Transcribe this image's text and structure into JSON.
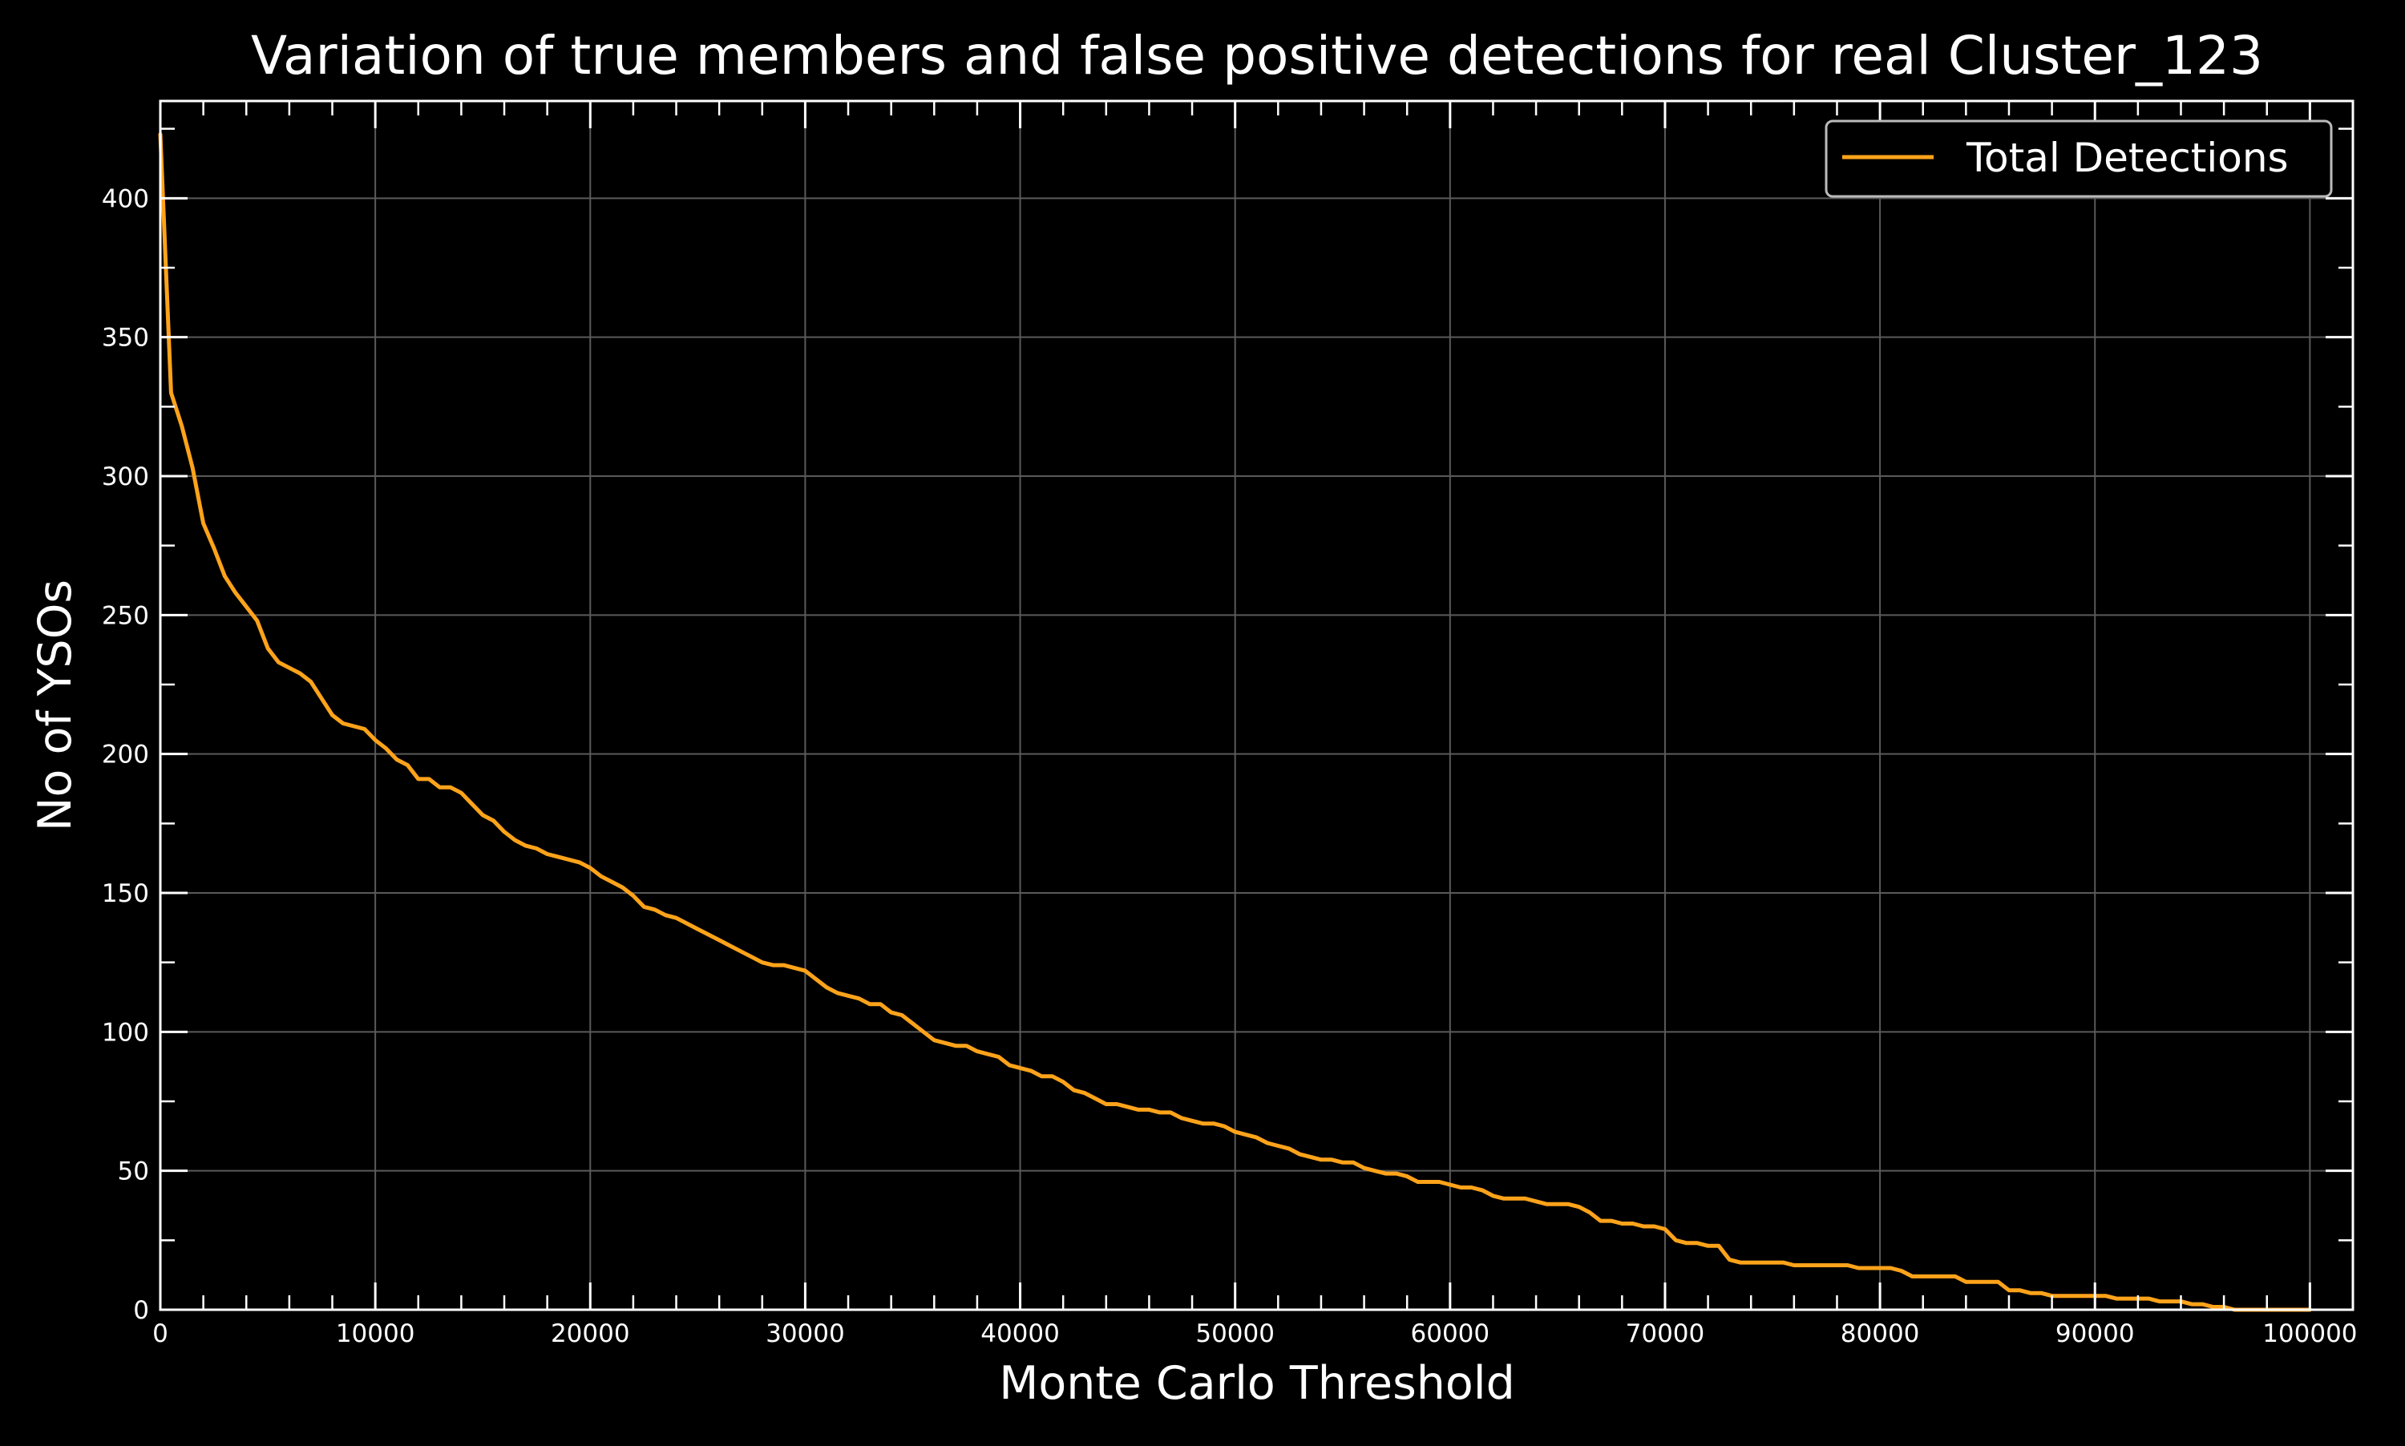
{
  "colors": {
    "background": "#000000",
    "foreground": "#ffffff",
    "grid": "#5a5a5a",
    "series_line": "#ffa31a",
    "legend_border": "#bbbbbb"
  },
  "chart_data": {
    "type": "line",
    "title": "Variation of true members and false positive detections for real Cluster_123",
    "xlabel": "Monte Carlo Threshold",
    "ylabel": "No of YSOs",
    "xlim": [
      0,
      102000
    ],
    "ylim": [
      0,
      435
    ],
    "grid": true,
    "legend_position": "top-right",
    "x_ticks": [
      0,
      10000,
      20000,
      30000,
      40000,
      50000,
      60000,
      70000,
      80000,
      90000,
      100000
    ],
    "x_tick_labels": [
      "0",
      "10000",
      "20000",
      "30000",
      "40000",
      "50000",
      "60000",
      "70000",
      "80000",
      "90000",
      "100000"
    ],
    "y_ticks": [
      0,
      50,
      100,
      150,
      200,
      250,
      300,
      350,
      400
    ],
    "y_tick_labels": [
      "0",
      "50",
      "100",
      "150",
      "200",
      "250",
      "300",
      "350",
      "400"
    ],
    "series": [
      {
        "name": "Total Detections",
        "x": [
          0,
          500,
          1000,
          1500,
          2000,
          2500,
          3000,
          3500,
          4000,
          4500,
          5000,
          5500,
          6000,
          6500,
          7000,
          7500,
          8000,
          8500,
          9000,
          9500,
          10000,
          10500,
          11000,
          11500,
          12000,
          12500,
          13000,
          13500,
          14000,
          14500,
          15000,
          15500,
          16000,
          16500,
          17000,
          17500,
          18000,
          18500,
          19000,
          19500,
          20000,
          20500,
          21000,
          21500,
          22000,
          22500,
          23000,
          23500,
          24000,
          24500,
          25000,
          25500,
          26000,
          26500,
          27000,
          27500,
          28000,
          28500,
          29000,
          29500,
          30000,
          30500,
          31000,
          31500,
          32000,
          32500,
          33000,
          33500,
          34000,
          34500,
          35000,
          35500,
          36000,
          36500,
          37000,
          37500,
          38000,
          38500,
          39000,
          39500,
          40000,
          40500,
          41000,
          41500,
          42000,
          42500,
          43000,
          43500,
          44000,
          44500,
          45000,
          45500,
          46000,
          46500,
          47000,
          47500,
          48000,
          48500,
          49000,
          49500,
          50000,
          50500,
          51000,
          51500,
          52000,
          52500,
          53000,
          53500,
          54000,
          54500,
          55000,
          55500,
          56000,
          56500,
          57000,
          57500,
          58000,
          58500,
          59000,
          59500,
          60000,
          60500,
          61000,
          61500,
          62000,
          62500,
          63000,
          63500,
          64000,
          64500,
          65000,
          65500,
          66000,
          66500,
          67000,
          67500,
          68000,
          68500,
          69000,
          69500,
          70000,
          70500,
          71000,
          71500,
          72000,
          72500,
          73000,
          73500,
          74000,
          74500,
          75000,
          75500,
          76000,
          76500,
          77000,
          77500,
          78000,
          78500,
          79000,
          79500,
          80000,
          80500,
          81000,
          81500,
          82000,
          82500,
          83000,
          83500,
          84000,
          84500,
          85000,
          85500,
          86000,
          86500,
          87000,
          87500,
          88000,
          88500,
          89000,
          89500,
          90000,
          90500,
          91000,
          91500,
          92000,
          92500,
          93000,
          93500,
          94000,
          94500,
          95000,
          95500,
          96000,
          96500,
          97000,
          97500,
          98000,
          98500,
          99000,
          99500,
          100000
        ],
        "y": [
          423,
          330,
          318,
          303,
          283,
          274,
          264,
          258,
          253,
          248,
          238,
          233,
          231,
          229,
          226,
          220,
          214,
          211,
          210,
          209,
          205,
          202,
          198,
          196,
          191,
          191,
          188,
          188,
          186,
          182,
          178,
          176,
          172,
          169,
          167,
          166,
          164,
          163,
          162,
          161,
          159,
          156,
          154,
          152,
          149,
          145,
          144,
          142,
          141,
          139,
          137,
          135,
          133,
          131,
          129,
          127,
          125,
          124,
          124,
          123,
          122,
          119,
          116,
          114,
          113,
          112,
          110,
          110,
          107,
          106,
          103,
          100,
          97,
          96,
          95,
          95,
          93,
          92,
          91,
          88,
          87,
          86,
          84,
          84,
          82,
          79,
          78,
          76,
          74,
          74,
          73,
          72,
          72,
          71,
          71,
          69,
          68,
          67,
          67,
          66,
          64,
          63,
          62,
          60,
          59,
          58,
          56,
          55,
          54,
          54,
          53,
          53,
          51,
          50,
          49,
          49,
          48,
          46,
          46,
          46,
          45,
          44,
          44,
          43,
          41,
          40,
          40,
          40,
          39,
          38,
          38,
          38,
          37,
          35,
          32,
          32,
          31,
          31,
          30,
          30,
          29,
          25,
          24,
          24,
          23,
          23,
          18,
          17,
          17,
          17,
          17,
          17,
          16,
          16,
          16,
          16,
          16,
          16,
          15,
          15,
          15,
          15,
          14,
          12,
          12,
          12,
          12,
          12,
          10,
          10,
          10,
          10,
          7,
          7,
          6,
          6,
          5,
          5,
          5,
          5,
          5,
          5,
          4,
          4,
          4,
          4,
          3,
          3,
          3,
          2,
          2,
          1,
          1,
          0,
          0,
          0,
          0,
          0,
          0,
          0,
          0
        ]
      }
    ]
  }
}
